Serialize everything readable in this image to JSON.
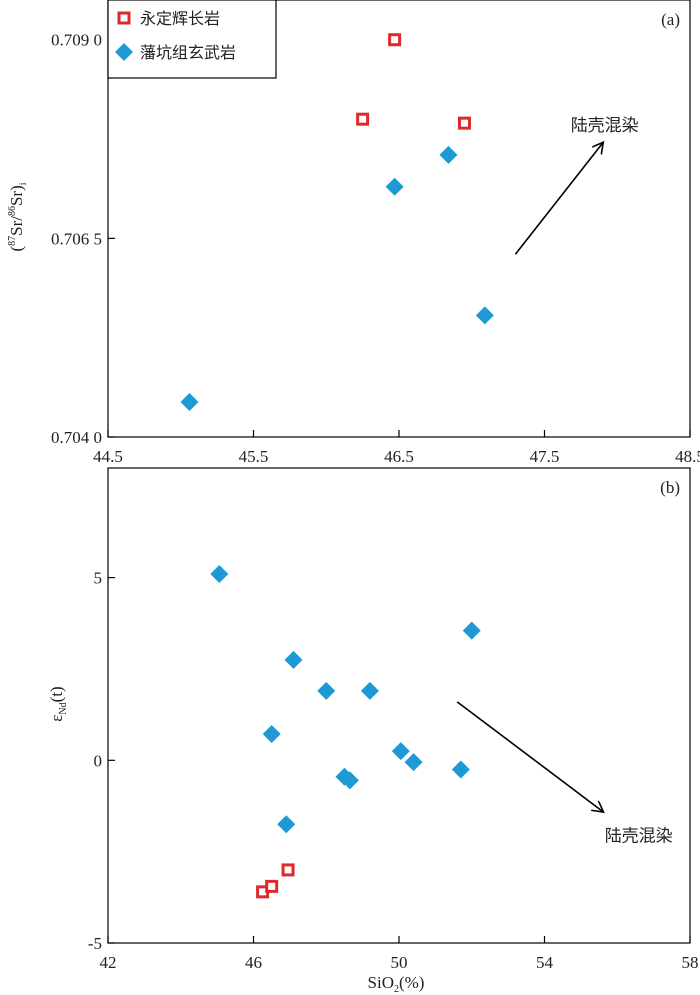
{
  "chart_data": [
    {
      "type": "scatter",
      "panel_label": "(a)",
      "ylabel_parts": [
        "(",
        "87",
        "Sr/",
        "86",
        "Sr)",
        "i"
      ],
      "xlabel": "",
      "xlim": [
        44.5,
        48.5
      ],
      "ylim": [
        0.704,
        0.7095
      ],
      "x_ticks": [
        44.5,
        45.5,
        46.5,
        47.5,
        48.5
      ],
      "x_tick_labels": [
        "44.5",
        "45.5",
        "46.5",
        "47.5",
        "48.5"
      ],
      "y_ticks": [
        0.704,
        0.7065,
        0.709
      ],
      "y_tick_labels": [
        "0.704 0",
        "0.706 5",
        "0.709 0"
      ],
      "grid": false,
      "legend": "top-left",
      "series": [
        {
          "name": "永定辉长岩",
          "marker": "square",
          "color": "#e0292e",
          "points": [
            [
              46.47,
              0.709
            ],
            [
              46.25,
              0.708
            ],
            [
              46.95,
              0.70795
            ]
          ]
        },
        {
          "name": "藩坑组玄武岩",
          "marker": "diamond",
          "color": "#1d9ad6",
          "points": [
            [
              46.47,
              0.70715
            ],
            [
              46.84,
              0.70755
            ],
            [
              47.09,
              0.70553
            ],
            [
              45.06,
              0.70444
            ]
          ]
        }
      ],
      "annotation": {
        "text": "陆壳混染",
        "arrow_from": [
          47.3,
          0.7063
        ],
        "arrow_to": [
          47.9,
          0.7077
        ]
      }
    },
    {
      "type": "scatter",
      "panel_label": "(b)",
      "ylabel_parts": [
        "ε",
        "Nd",
        "(t)"
      ],
      "xlabel_parts": [
        "SiO",
        "2",
        "(%)"
      ],
      "xlim": [
        42,
        58
      ],
      "ylim": [
        -5,
        8
      ],
      "x_ticks": [
        42,
        46,
        50,
        54,
        58
      ],
      "x_tick_labels": [
        "42",
        "46",
        "50",
        "54",
        "58"
      ],
      "y_ticks": [
        -5,
        0,
        5
      ],
      "y_tick_labels": [
        "-5",
        "0",
        "5"
      ],
      "grid": false,
      "series": [
        {
          "name": "永定辉长岩",
          "marker": "square",
          "color": "#e0292e",
          "points": [
            [
              46.25,
              -3.6
            ],
            [
              46.5,
              -3.45
            ],
            [
              46.95,
              -3.0
            ]
          ]
        },
        {
          "name": "藩坑组玄武岩",
          "marker": "diamond",
          "color": "#1d9ad6",
          "points": [
            [
              45.06,
              5.1
            ],
            [
              47.1,
              2.75
            ],
            [
              48.0,
              1.9
            ],
            [
              49.2,
              1.9
            ],
            [
              52.0,
              3.55
            ],
            [
              46.5,
              0.72
            ],
            [
              50.05,
              0.25
            ],
            [
              50.4,
              -0.05
            ],
            [
              51.7,
              -0.25
            ],
            [
              48.5,
              -0.45
            ],
            [
              48.65,
              -0.55
            ],
            [
              46.9,
              -1.75
            ]
          ]
        }
      ],
      "annotation": {
        "text": "陆壳混染",
        "arrow_from": [
          51.6,
          1.6
        ],
        "arrow_to": [
          55.6,
          -1.4
        ]
      }
    }
  ]
}
